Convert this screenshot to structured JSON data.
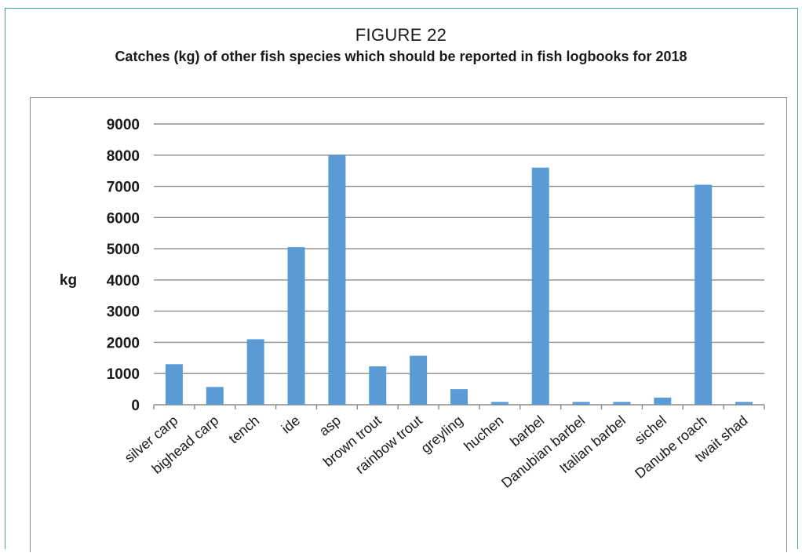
{
  "figure": {
    "label": "FIGURE 22",
    "title": "Catches (kg) of other fish species which should be reported in fish logbooks for 2018"
  },
  "colors": {
    "bar": "#5b9bd5",
    "grid": "#8c8c8c",
    "frame": "#3fa7a0",
    "text": "#1a1a1a"
  },
  "chart_data": {
    "type": "bar",
    "ylabel": "kg",
    "xlabel": "",
    "ylim": [
      0,
      9000
    ],
    "yticks": [
      0,
      1000,
      2000,
      3000,
      4000,
      5000,
      6000,
      7000,
      8000,
      9000
    ],
    "grid": true,
    "legend": "none",
    "categories": [
      "silver carp",
      "bighead carp",
      "tench",
      "ide",
      "asp",
      "brown trout",
      "rainbow trout",
      "greyling",
      "huchen",
      "barbel",
      "Danubian barbel",
      "Italian barbel",
      "sichel",
      "Danube roach",
      "twait shad"
    ],
    "values": [
      1300,
      570,
      2100,
      5050,
      8000,
      1230,
      1570,
      500,
      90,
      7600,
      90,
      90,
      230,
      7050,
      90
    ]
  }
}
